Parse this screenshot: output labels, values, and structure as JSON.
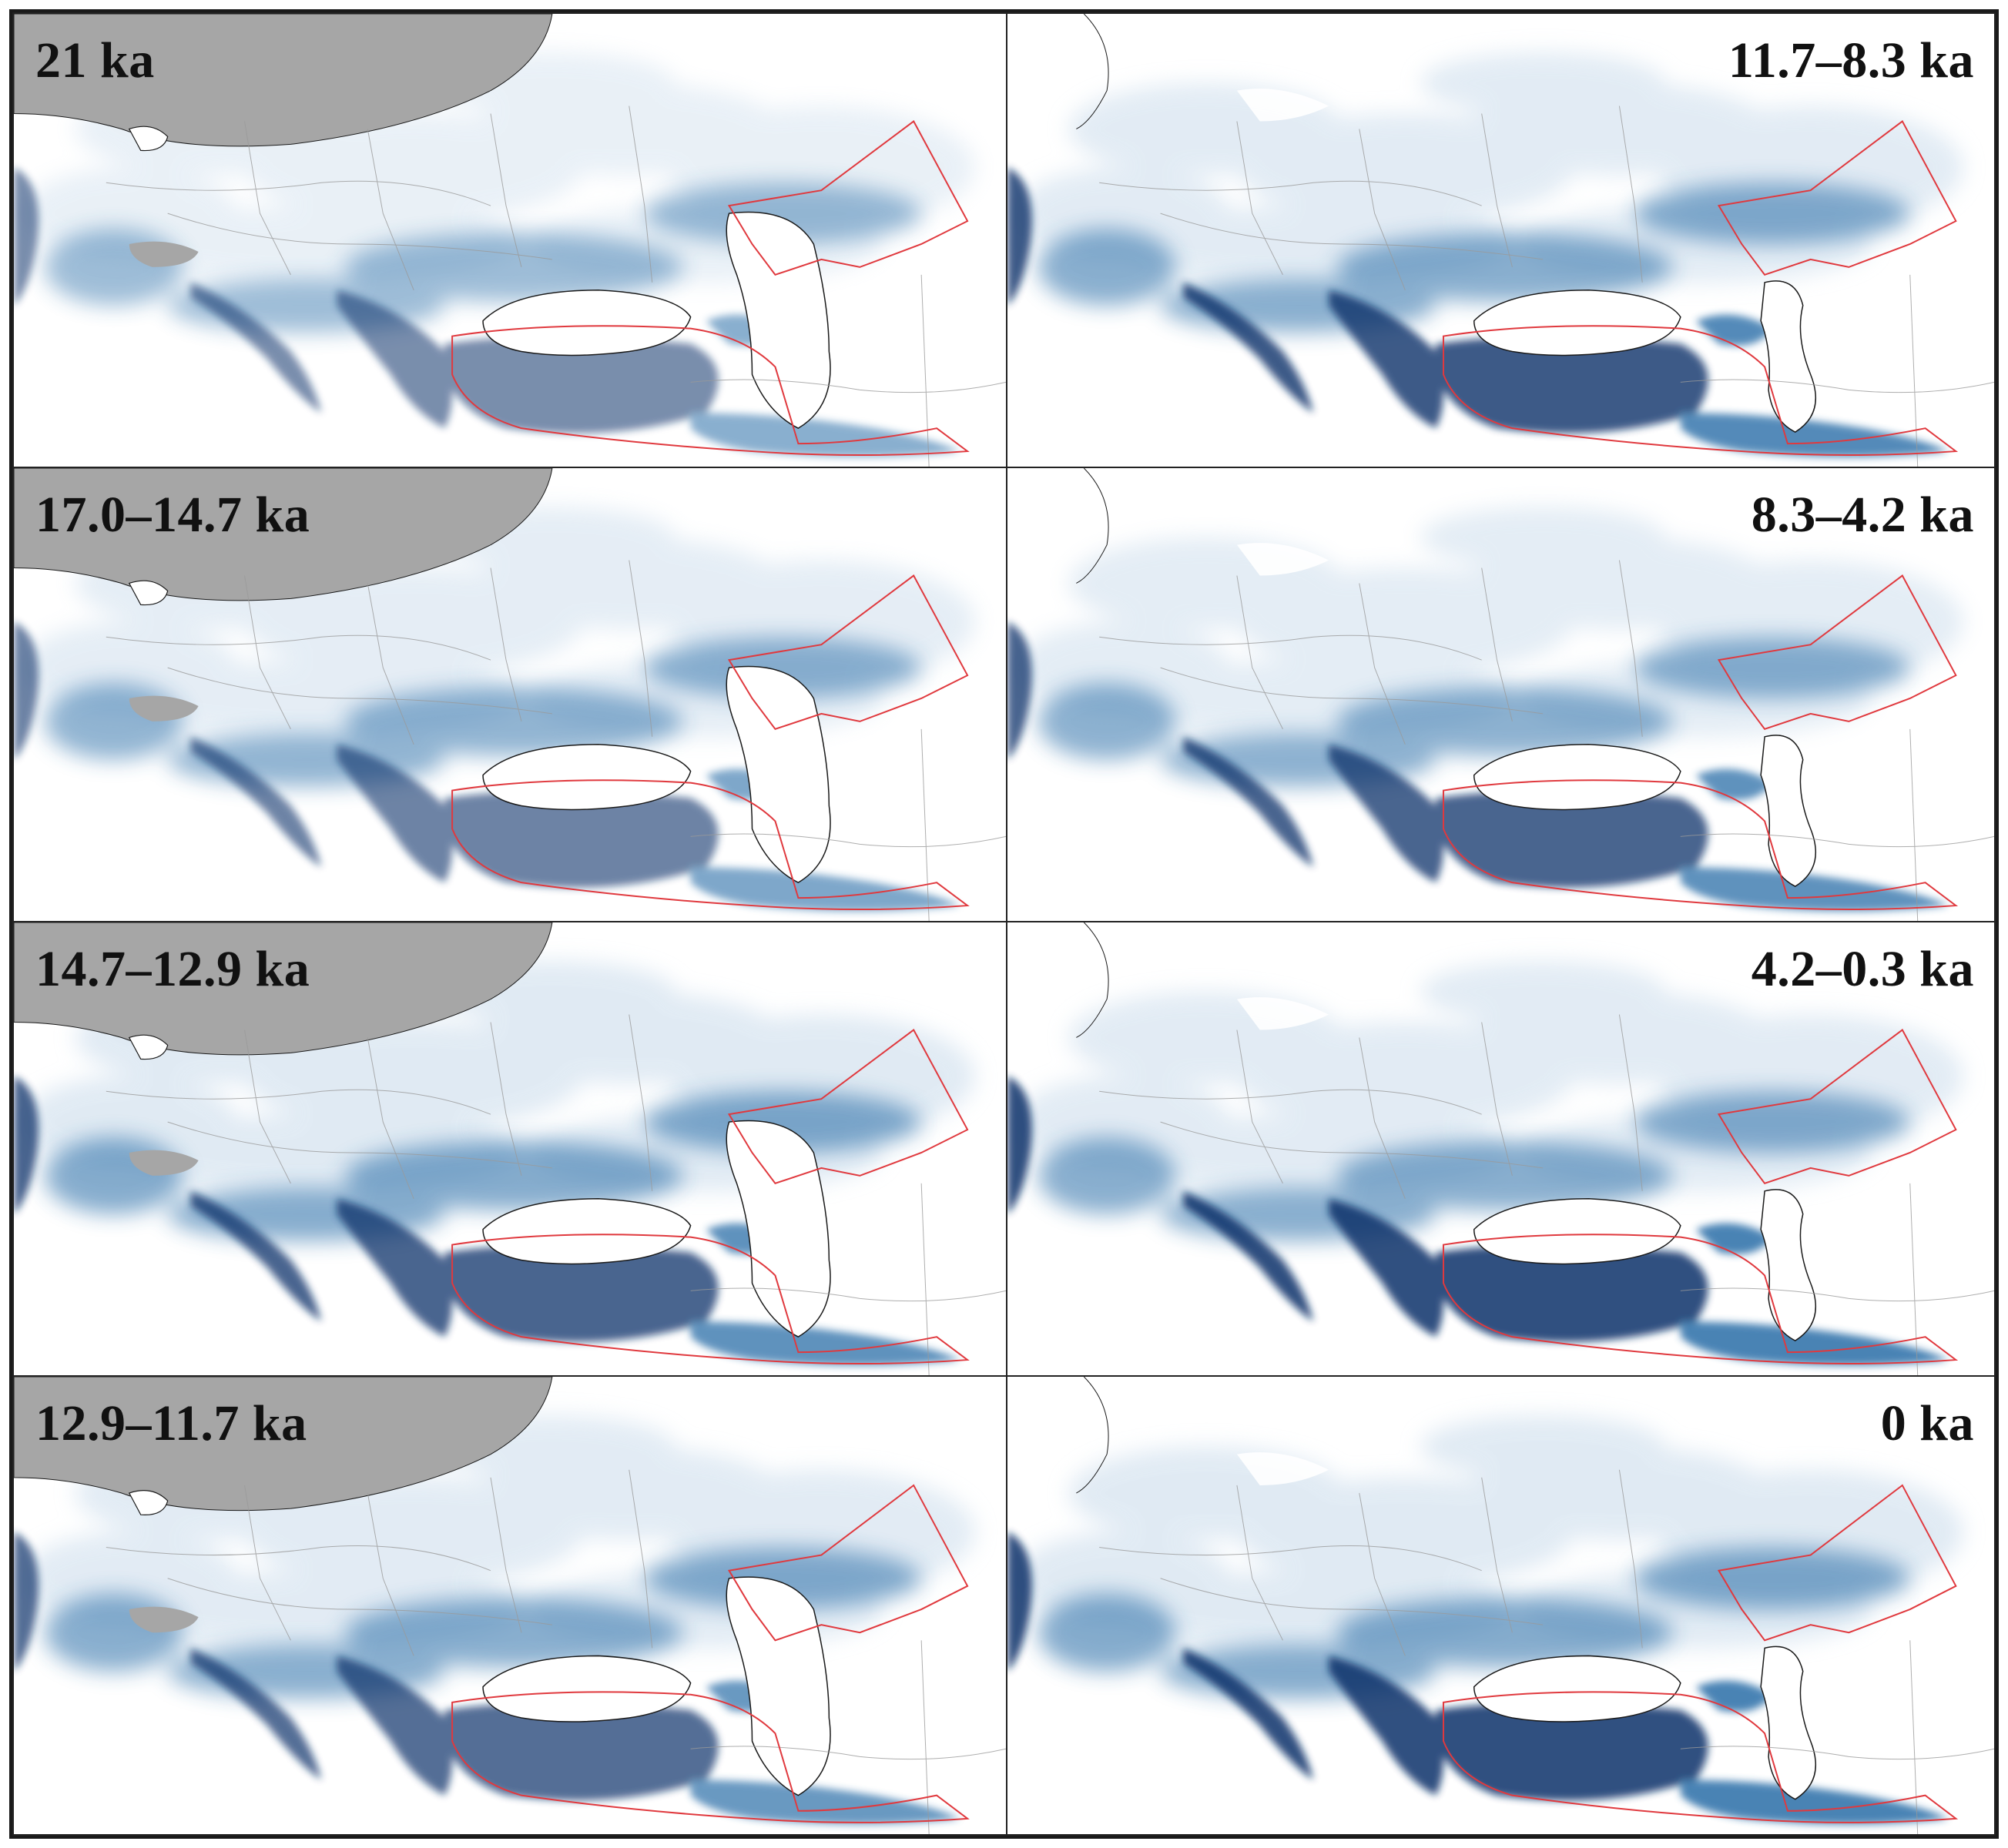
{
  "figure": {
    "panels": [
      {
        "id": "p21",
        "label": "21 ka",
        "ice": true,
        "intensity": 0.55,
        "north": 0.25
      },
      {
        "id": "p117",
        "label": "11.7–8.3 ka",
        "ice": false,
        "intensity": 0.8,
        "north": 0.5
      },
      {
        "id": "p170",
        "label": "17.0–14.7 ka",
        "ice": true,
        "intensity": 0.6,
        "north": 0.4
      },
      {
        "id": "p83",
        "label": "8.3–4.2 ka",
        "ice": false,
        "intensity": 0.75,
        "north": 0.45
      },
      {
        "id": "p147",
        "label": "14.7–12.9 ka",
        "ice": true,
        "intensity": 0.75,
        "north": 0.55
      },
      {
        "id": "p42",
        "label": "4.2–0.3 ka",
        "ice": false,
        "intensity": 0.85,
        "north": 0.5
      },
      {
        "id": "p129",
        "label": "12.9–11.7 ka",
        "ice": true,
        "intensity": 0.7,
        "north": 0.5
      },
      {
        "id": "p0",
        "label": "0 ka",
        "ice": false,
        "intensity": 0.85,
        "north": 0.55
      }
    ],
    "colors": {
      "suitability_high": "#08306b",
      "suitability_mid": "#2b6ea8",
      "suitability_low": "#c6d9ea",
      "ice_sheet": "#a6a6a6",
      "range_outline": "#e0393e",
      "coastline": "#1a1a1a",
      "borders": "#9a9a9a"
    }
  }
}
